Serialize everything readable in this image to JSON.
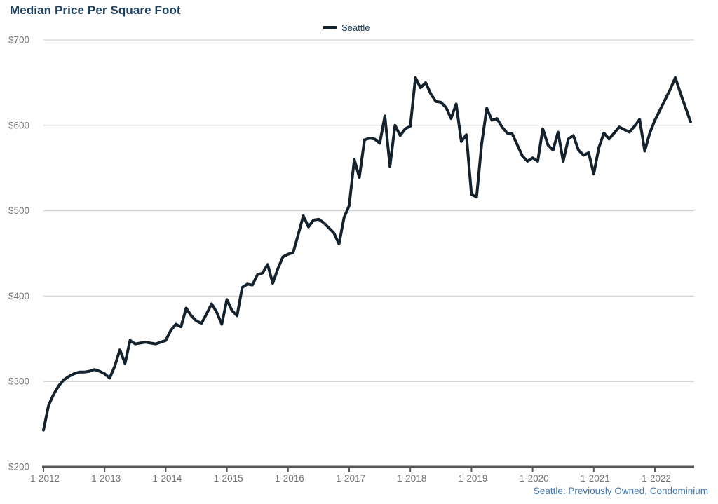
{
  "title": "Median Price Per Square Foot",
  "legend": {
    "label": "Seattle"
  },
  "footnote": "Seattle: Previously Owned, Condominium",
  "colors": {
    "title": "#1f4263",
    "legend_label": "#1f4263",
    "line": "#14222e",
    "axis_label": "#767676",
    "axis_line": "#58585a",
    "gridline": "#cccccc",
    "footnote": "#4174a9"
  },
  "chart_data": {
    "type": "line",
    "title": "Median Price Per Square Foot",
    "xlabel": "",
    "ylabel": "",
    "ylim": [
      200,
      700
    ],
    "y_ticks": [
      200,
      300,
      400,
      500,
      600,
      700
    ],
    "y_tick_labels": [
      "$200",
      "$300",
      "$400",
      "$500",
      "$600",
      "$700"
    ],
    "x_tick_labels": [
      "1-2012",
      "1-2013",
      "1-2014",
      "1-2015",
      "1-2016",
      "1-2017",
      "1-2018",
      "1-2019",
      "1-2020",
      "1-2021",
      "1-2022"
    ],
    "grid": "horizontal",
    "legend_position": "top-center",
    "note": "Seattle: Previously Owned, Condominium",
    "series": [
      {
        "name": "Seattle",
        "start": "2012-01",
        "frequency": "monthly",
        "values": [
          243,
          272,
          285,
          295,
          302,
          306,
          309,
          311,
          311,
          312,
          314,
          312,
          309,
          304,
          318,
          337,
          321,
          348,
          344,
          345,
          346,
          345,
          344,
          346,
          348,
          360,
          367,
          364,
          386,
          377,
          371,
          368,
          379,
          391,
          381,
          367,
          396,
          383,
          377,
          410,
          414,
          413,
          425,
          427,
          437,
          415,
          432,
          446,
          449,
          451,
          472,
          494,
          481,
          489,
          490,
          486,
          480,
          474,
          461,
          492,
          506,
          560,
          539,
          583,
          585,
          584,
          579,
          611,
          552,
          600,
          588,
          596,
          599,
          656,
          644,
          650,
          637,
          628,
          627,
          621,
          608,
          625,
          581,
          589,
          519,
          516,
          578,
          620,
          606,
          608,
          598,
          591,
          590,
          577,
          564,
          558,
          562,
          558,
          596,
          577,
          571,
          592,
          558,
          584,
          588,
          571,
          565,
          568,
          543,
          574,
          591,
          584,
          591,
          598,
          595,
          592,
          599,
          607,
          570,
          591,
          606,
          618,
          630,
          642,
          656,
          638,
          621,
          604
        ]
      }
    ]
  }
}
